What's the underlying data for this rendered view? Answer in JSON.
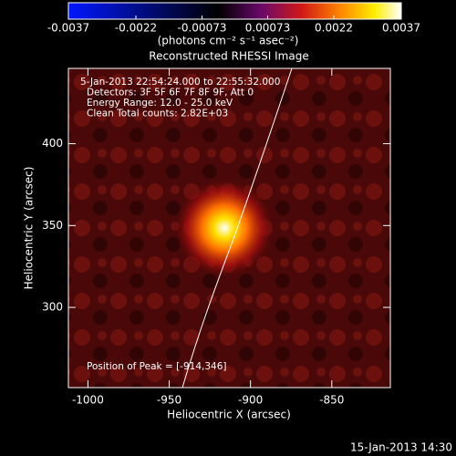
{
  "chart_data": {
    "type": "image",
    "title": "Reconstructed RHESSI Image",
    "colorbar": {
      "lim": [
        -0.0037,
        0.0037
      ],
      "ticks": [
        -0.0037,
        -0.0022,
        -0.00073,
        0.00073,
        0.0022,
        0.0037
      ],
      "label": "(photons cm⁻² s⁻¹ asec⁻²)"
    },
    "x_label": "Heliocentric X (arcsec)",
    "y_label": "Heliocentric Y (arcsec)",
    "xlim": [
      -1012,
      -814
    ],
    "xticks": [
      -1000,
      -950,
      -900,
      -850
    ],
    "ylim": [
      251,
      446
    ],
    "yticks": [
      300,
      350,
      400
    ],
    "annotations": [
      "5-Jan-2013 22:54:24.000 to 22:55:32.000",
      "Detectors: 3F 5F 6F 7F 8F 9F, Att 0",
      "Energy Range: 12.0 - 25.0 keV",
      "Clean     Total counts: 2.82E+03"
    ],
    "peak_label": "Position of Peak = [-914,346]",
    "footer": "15-Jan-2013 14:30"
  }
}
